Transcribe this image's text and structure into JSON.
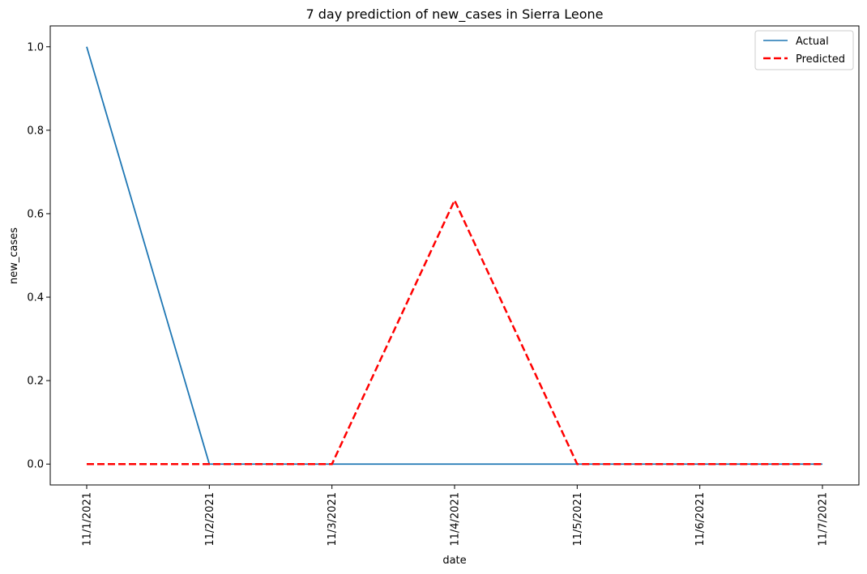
{
  "chart_data": {
    "type": "line",
    "title": "7 day prediction of new_cases in Sierra Leone",
    "xlabel": "date",
    "ylabel": "new_cases",
    "categories": [
      "11/1/2021",
      "11/2/2021",
      "11/3/2021",
      "11/4/2021",
      "11/5/2021",
      "11/6/2021",
      "11/7/2021"
    ],
    "y_ticks": [
      "0.0",
      "0.2",
      "0.4",
      "0.6",
      "0.8",
      "1.0"
    ],
    "ylim": [
      -0.05,
      1.05
    ],
    "grid": false,
    "legend_position": "top-right",
    "series": [
      {
        "name": "Actual",
        "values": [
          1,
          0,
          0,
          0,
          0,
          0,
          0
        ],
        "color": "#1f77b4",
        "style": "solid"
      },
      {
        "name": "Predicted",
        "values": [
          0,
          0,
          0,
          0.632,
          0,
          0,
          0
        ],
        "color": "#ff0000",
        "style": "dashed"
      }
    ]
  }
}
